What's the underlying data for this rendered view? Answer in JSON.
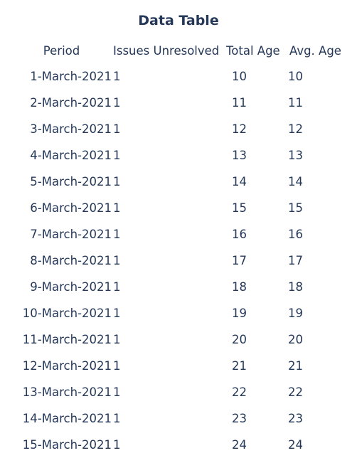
{
  "title": "Data Table",
  "columns": [
    "Period",
    "Issues Unresolved",
    "Total Age",
    "Avg. Age"
  ],
  "rows": [
    [
      "1-March-2021",
      "1",
      "10",
      "10"
    ],
    [
      "2-March-2021",
      "1",
      "11",
      "11"
    ],
    [
      "3-March-2021",
      "1",
      "12",
      "12"
    ],
    [
      "4-March-2021",
      "1",
      "13",
      "13"
    ],
    [
      "5-March-2021",
      "1",
      "14",
      "14"
    ],
    [
      "6-March-2021",
      "1",
      "15",
      "15"
    ],
    [
      "7-March-2021",
      "1",
      "16",
      "16"
    ],
    [
      "8-March-2021",
      "1",
      "17",
      "17"
    ],
    [
      "9-March-2021",
      "1",
      "18",
      "18"
    ],
    [
      "10-March-2021",
      "1",
      "19",
      "19"
    ],
    [
      "11-March-2021",
      "1",
      "20",
      "20"
    ],
    [
      "12-March-2021",
      "1",
      "21",
      "21"
    ],
    [
      "13-March-2021",
      "1",
      "22",
      "22"
    ],
    [
      "14-March-2021",
      "1",
      "23",
      "23"
    ],
    [
      "15-March-2021",
      "1",
      "24",
      "24"
    ]
  ],
  "colors": {
    "text": "#253858",
    "background": "#ffffff"
  }
}
